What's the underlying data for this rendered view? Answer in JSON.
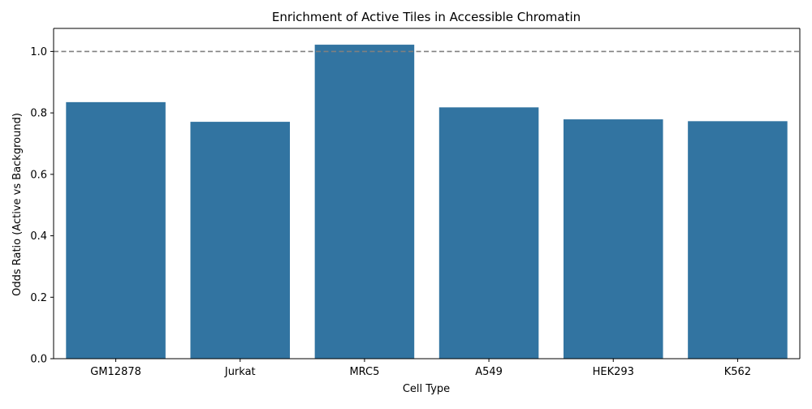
{
  "chart_data": {
    "type": "bar",
    "title": "Enrichment of Active Tiles in Accessible Chromatin",
    "xlabel": "Cell Type",
    "ylabel": "Odds Ratio (Active vs Background)",
    "categories": [
      "GM12878",
      "Jurkat",
      "MRC5",
      "A549",
      "HEK293",
      "K562"
    ],
    "values": [
      0.835,
      0.771,
      1.022,
      0.818,
      0.779,
      0.773
    ],
    "ylim": [
      0,
      1.075
    ],
    "yticks": [
      0.0,
      0.2,
      0.4,
      0.6,
      0.8,
      1.0
    ],
    "ytick_labels": [
      "0.0",
      "0.2",
      "0.4",
      "0.6",
      "0.8",
      "1.0"
    ],
    "reference_line": {
      "y": 1.0,
      "style": "dashed",
      "color": "#808080"
    },
    "bar_color": "#3274a1",
    "grid": false,
    "legend": "none"
  }
}
